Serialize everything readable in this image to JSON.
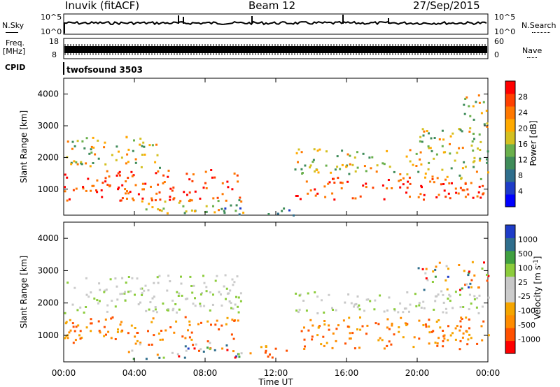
{
  "header": {
    "station": "Inuvik (fitACF)",
    "beam": "Beam 12",
    "date": "27/Sep/2015"
  },
  "strips": {
    "nsky_label": "N.Sky",
    "nsky_ticks": [
      "10^5",
      "10^0"
    ],
    "nsearch_label": "N.Search",
    "nsearch_ticks": [
      "10^5",
      "10^0"
    ],
    "freq_label_1": "Freq.",
    "freq_label_2": "[MHz]",
    "freq_ticks": [
      "18",
      "8"
    ],
    "nave_label": "Nave",
    "nave_ticks": [
      "60",
      "0"
    ],
    "cpid_label": "CPID",
    "cpid_value": "twofsound 3503"
  },
  "x_axis": {
    "label": "Time UT",
    "ticks": [
      "00:00",
      "04:00",
      "08:00",
      "12:00",
      "16:00",
      "20:00",
      "00:00"
    ]
  },
  "chart_data": [
    {
      "type": "heatmap",
      "panel": "power",
      "ylabel": "Slant Range [km]",
      "ylim": [
        180,
        4500
      ],
      "yticks": [
        1000,
        2000,
        3000,
        4000
      ],
      "xlim_hours": [
        0,
        24
      ],
      "colorbar": {
        "label": "Power [dB]",
        "ticks": [
          "28",
          "24",
          "20",
          "16",
          "12",
          "8",
          "4"
        ],
        "colors": [
          "#0000ff",
          "#1e3cc8",
          "#2f6e8c",
          "#3f8c5a",
          "#6ab04c",
          "#d4c020",
          "#ffaa00",
          "#ff7800",
          "#ff4000",
          "#ff0000"
        ]
      },
      "scatter_regions": [
        {
          "t": [
            0.0,
            10.0
          ],
          "r": [
            650,
            1650
          ],
          "value": "high"
        },
        {
          "t": [
            0.0,
            5.5
          ],
          "r": [
            1700,
            2700
          ],
          "value": "medium"
        },
        {
          "t": [
            4.0,
            10.5
          ],
          "r": [
            250,
            700
          ],
          "value": "medium"
        },
        {
          "t": [
            9.0,
            13.0
          ],
          "r": [
            200,
            450
          ],
          "value": "low"
        },
        {
          "t": [
            13.0,
            24.0
          ],
          "r": [
            700,
            1400
          ],
          "value": "high"
        },
        {
          "t": [
            13.0,
            20.0
          ],
          "r": [
            1500,
            2300
          ],
          "value": "medium"
        },
        {
          "t": [
            20.0,
            24.0
          ],
          "r": [
            1300,
            3000
          ],
          "value": "medium"
        },
        {
          "t": [
            22.5,
            24.0
          ],
          "r": [
            3000,
            4000
          ],
          "value": "medium"
        }
      ]
    },
    {
      "type": "heatmap",
      "panel": "velocity",
      "ylabel": "Slant Range [km]",
      "ylim": [
        180,
        4500
      ],
      "yticks": [
        1000,
        2000,
        3000,
        4000
      ],
      "xlim_hours": [
        0,
        24
      ],
      "colorbar": {
        "label": "Velocity [m s-1]",
        "ticks": [
          "1000",
          "500",
          "100",
          "25",
          "-25",
          "-100",
          "-500",
          "-1000"
        ],
        "colors": [
          "#ff0000",
          "#ff5000",
          "#ff8c00",
          "#f5a500",
          "#cccccc",
          "#c8c8c8",
          "#8ccc3c",
          "#40a040",
          "#2f6e8c",
          "#1e3cc8"
        ]
      },
      "scatter_regions": [
        {
          "t": [
            0.0,
            10.0
          ],
          "r": [
            800,
            1600
          ],
          "value": "away-fast"
        },
        {
          "t": [
            0.0,
            10.0
          ],
          "r": [
            1700,
            2900
          ],
          "value": "near-zero"
        },
        {
          "t": [
            3.5,
            10.5
          ],
          "r": [
            300,
            800
          ],
          "value": "mixed"
        },
        {
          "t": [
            10.5,
            13.0
          ],
          "r": [
            300,
            700
          ],
          "value": "away-fast"
        },
        {
          "t": [
            13.0,
            24.0
          ],
          "r": [
            600,
            1600
          ],
          "value": "away-fast"
        },
        {
          "t": [
            13.0,
            24.0
          ],
          "r": [
            1700,
            2400
          ],
          "value": "near-zero"
        },
        {
          "t": [
            20.0,
            24.0
          ],
          "r": [
            2400,
            3300
          ],
          "value": "mixed"
        }
      ]
    }
  ]
}
